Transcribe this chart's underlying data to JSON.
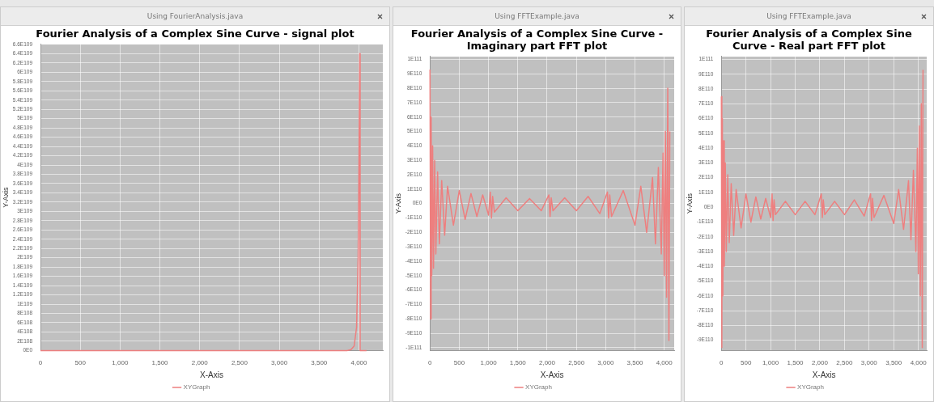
{
  "chart_data": [
    {
      "type": "line",
      "title": "Fourier Analysis of a Complex Sine Curve - signal plot",
      "annotations": [
        "Using FourierAnalysis.java"
      ],
      "xlabel": "X-Axis",
      "ylabel": "Y-Axis",
      "legend": "bottom",
      "grid": true,
      "x": [
        0,
        3850,
        3900,
        3940,
        3970,
        3990,
        4000,
        4010,
        4015,
        4095
      ],
      "series": [
        {
          "name": "XYGraph",
          "color": "#ee7f7f",
          "values": [
            0,
            0,
            2e+107,
            1e+108,
            5e+108,
            2e+109,
            4e+109,
            6.4e+109,
            0,
            0
          ]
        }
      ],
      "xlim": [
        0,
        4300
      ],
      "xticks": [
        {
          "value": 0,
          "label": "0"
        },
        {
          "value": 500,
          "label": "500"
        },
        {
          "value": 1000,
          "label": "1,000"
        },
        {
          "value": 1500,
          "label": "1,500"
        },
        {
          "value": 2000,
          "label": "2,000"
        },
        {
          "value": 2500,
          "label": "2,500"
        },
        {
          "value": 3000,
          "label": "3,000"
        },
        {
          "value": 3500,
          "label": "3,500"
        },
        {
          "value": 4000,
          "label": "4,000"
        }
      ],
      "ylim": [
        0,
        6.6e+109
      ],
      "yticks": [
        {
          "value": 0,
          "label": "0E0"
        },
        {
          "value": 2e+108,
          "label": "2E108"
        },
        {
          "value": 4e+108,
          "label": "4E108"
        },
        {
          "value": 6e+108,
          "label": "6E108"
        },
        {
          "value": 8e+108,
          "label": "8E108"
        },
        {
          "value": 1e+109,
          "label": "1E109"
        },
        {
          "value": 1.2e+109,
          "label": "1.2E109"
        },
        {
          "value": 1.4e+109,
          "label": "1.4E109"
        },
        {
          "value": 1.6e+109,
          "label": "1.6E109"
        },
        {
          "value": 1.8e+109,
          "label": "1.8E109"
        },
        {
          "value": 2e+109,
          "label": "2E109"
        },
        {
          "value": 2.2e+109,
          "label": "2.2E109"
        },
        {
          "value": 2.4e+109,
          "label": "2.4E109"
        },
        {
          "value": 2.6e+109,
          "label": "2.6E109"
        },
        {
          "value": 2.8e+109,
          "label": "2.8E109"
        },
        {
          "value": 3e+109,
          "label": "3E109"
        },
        {
          "value": 3.2e+109,
          "label": "3.2E109"
        },
        {
          "value": 3.4e+109,
          "label": "3.4E109"
        },
        {
          "value": 3.6e+109,
          "label": "3.6E109"
        },
        {
          "value": 3.8e+109,
          "label": "3.8E109"
        },
        {
          "value": 4e+109,
          "label": "4E109"
        },
        {
          "value": 4.2e+109,
          "label": "4.2E109"
        },
        {
          "value": 4.4e+109,
          "label": "4.4E109"
        },
        {
          "value": 4.6e+109,
          "label": "4.6E109"
        },
        {
          "value": 4.8e+109,
          "label": "4.8E109"
        },
        {
          "value": 5e+109,
          "label": "5E109"
        },
        {
          "value": 5.2e+109,
          "label": "5.2E109"
        },
        {
          "value": 5.4e+109,
          "label": "5.4E109"
        },
        {
          "value": 5.6e+109,
          "label": "5.6E109"
        },
        {
          "value": 5.8e+109,
          "label": "5.8E109"
        },
        {
          "value": 6e+109,
          "label": "6E109"
        },
        {
          "value": 6.2e+109,
          "label": "6.2E109"
        },
        {
          "value": 6.4e+109,
          "label": "6.4E109"
        },
        {
          "value": 6.6e+109,
          "label": "6.6E109"
        }
      ]
    },
    {
      "type": "line",
      "title": "Fourier Analysis of a Complex Sine Curve - Imaginary part FFT plot",
      "annotations": [
        "Using FFTExample.java"
      ],
      "xlabel": "X-Axis",
      "ylabel": "Y-Axis",
      "legend": "bottom",
      "grid": true,
      "x": [
        0,
        10,
        20,
        30,
        45,
        60,
        80,
        100,
        130,
        160,
        200,
        250,
        300,
        400,
        500,
        600,
        700,
        800,
        900,
        1000,
        1030,
        1050,
        1070,
        1100,
        1300,
        1500,
        1700,
        1900,
        2030,
        2050,
        2070,
        2100,
        2300,
        2500,
        2700,
        2900,
        3030,
        3050,
        3070,
        3100,
        3300,
        3500,
        3600,
        3700,
        3800,
        3850,
        3900,
        3950,
        3980,
        4000,
        4020,
        4040,
        4060,
        4080,
        4095
      ],
      "series": [
        {
          "name": "XYGraph",
          "color": "#ee7f7f",
          "values": [
            9.3e+110,
            -8e+110,
            6e+110,
            -5e+110,
            4e+110,
            -4.5e+110,
            3e+110,
            -3.5e+110,
            2.2e+110,
            -2.8e+110,
            1.6e+110,
            -2.2e+110,
            1.2e+110,
            -1.5e+110,
            9e+109,
            -1.1e+110,
            7e+109,
            -9e+109,
            6e+109,
            -8e+109,
            8e+109,
            -1e+110,
            5e+109,
            -6e+109,
            4e+109,
            -5e+109,
            3.5e+109,
            -5e+109,
            6e+109,
            -9e+109,
            4e+109,
            -5e+109,
            4e+109,
            -5e+109,
            5e+109,
            -7e+109,
            8e+109,
            -1e+110,
            6e+109,
            -9e+109,
            9e+109,
            -1.5e+110,
            1.2e+110,
            -2e+110,
            1.8e+110,
            -2.8e+110,
            2.5e+110,
            -3.5e+110,
            3.5e+110,
            -5e+110,
            5e+110,
            -6.5e+110,
            8e+110,
            -9.5e+110,
            5e+110
          ]
        }
      ],
      "xlim": [
        0,
        4170
      ],
      "xticks": [
        {
          "value": 0,
          "label": "0"
        },
        {
          "value": 500,
          "label": "500"
        },
        {
          "value": 1000,
          "label": "1,000"
        },
        {
          "value": 1500,
          "label": "1,500"
        },
        {
          "value": 2000,
          "label": "2,000"
        },
        {
          "value": 2500,
          "label": "2,500"
        },
        {
          "value": 3000,
          "label": "3,000"
        },
        {
          "value": 3500,
          "label": "3,500"
        },
        {
          "value": 4000,
          "label": "4,000"
        }
      ],
      "ylim": [
        -1.02e+111,
        1.02e+111
      ],
      "yticks": [
        {
          "value": -1e+111,
          "label": "-1E111"
        },
        {
          "value": -9e+110,
          "label": "-9E110"
        },
        {
          "value": -8e+110,
          "label": "-8E110"
        },
        {
          "value": -7e+110,
          "label": "-7E110"
        },
        {
          "value": -6e+110,
          "label": "-6E110"
        },
        {
          "value": -5e+110,
          "label": "-5E110"
        },
        {
          "value": -4e+110,
          "label": "-4E110"
        },
        {
          "value": -3e+110,
          "label": "-3E110"
        },
        {
          "value": -2e+110,
          "label": "-2E110"
        },
        {
          "value": -1e+110,
          "label": "-1E110"
        },
        {
          "value": 0,
          "label": "0E0"
        },
        {
          "value": 1e+110,
          "label": "1E110"
        },
        {
          "value": 2e+110,
          "label": "2E110"
        },
        {
          "value": 3e+110,
          "label": "3E110"
        },
        {
          "value": 4e+110,
          "label": "4E110"
        },
        {
          "value": 5e+110,
          "label": "5E110"
        },
        {
          "value": 6e+110,
          "label": "6E110"
        },
        {
          "value": 7e+110,
          "label": "7E110"
        },
        {
          "value": 8e+110,
          "label": "8E110"
        },
        {
          "value": 9e+110,
          "label": "9E110"
        },
        {
          "value": 1e+111,
          "label": "1E111"
        }
      ]
    },
    {
      "type": "line",
      "title": "Fourier Analysis of a Complex Sine Curve - Real part FFT plot",
      "annotations": [
        "Using FFTExample.java"
      ],
      "xlabel": "X-Axis",
      "ylabel": "Y-Axis",
      "legend": "bottom",
      "grid": true,
      "x": [
        0,
        10,
        20,
        30,
        45,
        60,
        80,
        100,
        130,
        160,
        200,
        250,
        300,
        400,
        500,
        600,
        700,
        800,
        900,
        1000,
        1030,
        1050,
        1070,
        1100,
        1300,
        1500,
        1700,
        1900,
        2030,
        2050,
        2070,
        2100,
        2300,
        2500,
        2700,
        2900,
        3030,
        3050,
        3070,
        3100,
        3300,
        3500,
        3600,
        3700,
        3800,
        3850,
        3900,
        3950,
        3980,
        4000,
        4020,
        4040,
        4060,
        4080,
        4095
      ],
      "series": [
        {
          "name": "XYGraph",
          "color": "#ee7f7f",
          "values": [
            7.5e+110,
            -9.5e+110,
            6e+110,
            -6e+110,
            4.5e+110,
            -4e+110,
            3e+110,
            -3e+110,
            2.2e+110,
            -2.4e+110,
            1.6e+110,
            -1.9e+110,
            1.2e+110,
            -1.4e+110,
            9e+109,
            -1e+110,
            7e+109,
            -8e+109,
            6e+109,
            -7e+109,
            9e+109,
            -9e+109,
            5e+109,
            -5e+109,
            4e+109,
            -5e+109,
            4e+109,
            -5e+109,
            9e+109,
            -7e+109,
            5e+109,
            -5e+109,
            4e+109,
            -5e+109,
            5e+109,
            -6e+109,
            9e+109,
            -9e+109,
            6e+109,
            -7e+109,
            8e+109,
            -1.1e+110,
            1.2e+110,
            -1.5e+110,
            1.8e+110,
            -2.2e+110,
            2.5e+110,
            -3e+110,
            4e+110,
            -4.5e+110,
            5.5e+110,
            -6e+110,
            7e+110,
            -9.5e+110,
            9.3e+110
          ]
        }
      ],
      "xlim": [
        0,
        4170
      ],
      "xticks": [
        {
          "value": 0,
          "label": "0"
        },
        {
          "value": 500,
          "label": "500"
        },
        {
          "value": 1000,
          "label": "1,000"
        },
        {
          "value": 1500,
          "label": "1,500"
        },
        {
          "value": 2000,
          "label": "2,000"
        },
        {
          "value": 2500,
          "label": "2,500"
        },
        {
          "value": 3000,
          "label": "3,000"
        },
        {
          "value": 3500,
          "label": "3,500"
        },
        {
          "value": 4000,
          "label": "4,000"
        }
      ],
      "ylim": [
        -9.7e+110,
        1.02e+111
      ],
      "yticks": [
        {
          "value": -9e+110,
          "label": "-9E110"
        },
        {
          "value": -8e+110,
          "label": "-8E110"
        },
        {
          "value": -7e+110,
          "label": "-7E110"
        },
        {
          "value": -6e+110,
          "label": "-6E110"
        },
        {
          "value": -5e+110,
          "label": "-5E110"
        },
        {
          "value": -4e+110,
          "label": "-4E110"
        },
        {
          "value": -3e+110,
          "label": "-3E110"
        },
        {
          "value": -2e+110,
          "label": "-2E110"
        },
        {
          "value": -1e+110,
          "label": "-1E110"
        },
        {
          "value": 0,
          "label": "0E0"
        },
        {
          "value": 1e+110,
          "label": "1E110"
        },
        {
          "value": 2e+110,
          "label": "2E110"
        },
        {
          "value": 3e+110,
          "label": "3E110"
        },
        {
          "value": 4e+110,
          "label": "4E110"
        },
        {
          "value": 5e+110,
          "label": "5E110"
        },
        {
          "value": 6e+110,
          "label": "6E110"
        },
        {
          "value": 7e+110,
          "label": "7E110"
        },
        {
          "value": 8e+110,
          "label": "8E110"
        },
        {
          "value": 9e+110,
          "label": "9E110"
        },
        {
          "value": 1e+111,
          "label": "1E111"
        }
      ]
    }
  ]
}
